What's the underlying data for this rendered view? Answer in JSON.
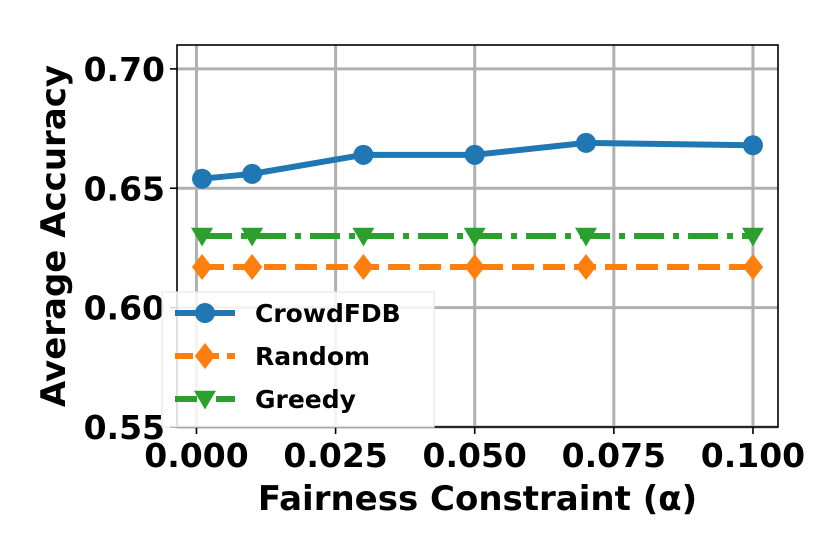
{
  "chart_data": {
    "type": "line",
    "title": "",
    "xlabel": "Fairness Constraint (α)",
    "ylabel": "Average Accuracy",
    "x": [
      0.001,
      0.01,
      0.03,
      0.05,
      0.07,
      0.1
    ],
    "xlim": [
      -0.0035,
      0.1045
    ],
    "ylim": [
      0.55,
      0.71
    ],
    "xticks": [
      0.0,
      0.025,
      0.05,
      0.075,
      0.1
    ],
    "xtick_labels": [
      "0.000",
      "0.025",
      "0.050",
      "0.075",
      "0.100"
    ],
    "yticks": [
      0.55,
      0.6,
      0.65,
      0.7
    ],
    "ytick_labels": [
      "0.55",
      "0.60",
      "0.65",
      "0.70"
    ],
    "grid": true,
    "legend": "lower-left",
    "series": [
      {
        "name": "CrowdFDB",
        "values": [
          0.654,
          0.656,
          0.664,
          0.664,
          0.669,
          0.668
        ],
        "color": "#1f77b4",
        "line": "solid",
        "marker": "circle"
      },
      {
        "name": "Random",
        "values": [
          0.617,
          0.617,
          0.617,
          0.617,
          0.617,
          0.617
        ],
        "color": "#ff7f0e",
        "line": "dashed",
        "marker": "diamond"
      },
      {
        "name": "Greedy",
        "values": [
          0.63,
          0.63,
          0.63,
          0.63,
          0.63,
          0.63
        ],
        "color": "#2ca02c",
        "line": "dashdot",
        "marker": "triangle-down"
      }
    ]
  }
}
